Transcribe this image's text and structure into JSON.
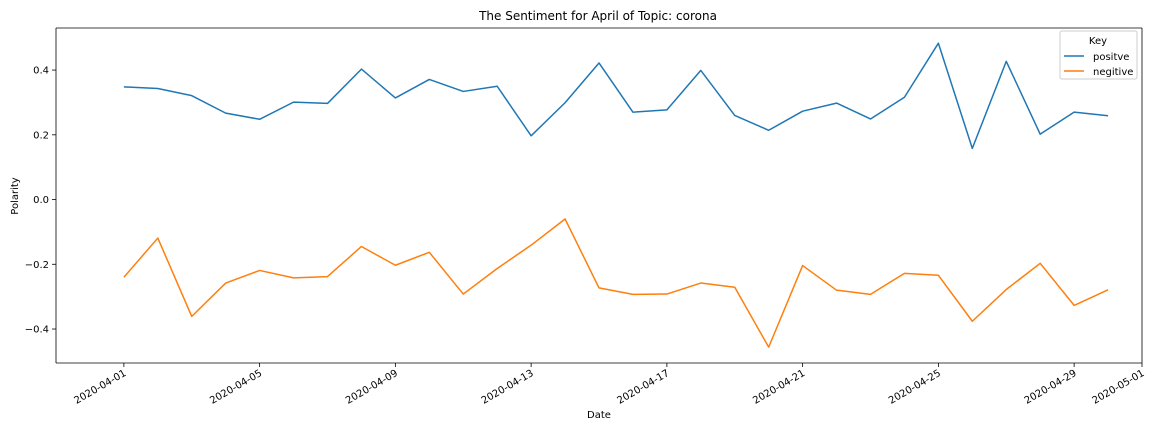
{
  "chart_data": {
    "type": "line",
    "title": "The Sentiment for April of Topic: corona",
    "xlabel": "Date",
    "ylabel": "Polarity",
    "x": [
      "2020-04-01",
      "2020-04-02",
      "2020-04-03",
      "2020-04-04",
      "2020-04-05",
      "2020-04-06",
      "2020-04-07",
      "2020-04-08",
      "2020-04-09",
      "2020-04-10",
      "2020-04-11",
      "2020-04-12",
      "2020-04-13",
      "2020-04-14",
      "2020-04-15",
      "2020-04-16",
      "2020-04-17",
      "2020-04-18",
      "2020-04-19",
      "2020-04-20",
      "2020-04-21",
      "2020-04-22",
      "2020-04-23",
      "2020-04-24",
      "2020-04-25",
      "2020-04-26",
      "2020-04-27",
      "2020-04-28",
      "2020-04-29",
      "2020-04-30"
    ],
    "series": [
      {
        "name": "positve",
        "color": "#1f77b4",
        "values": [
          0.348,
          0.343,
          0.321,
          0.267,
          0.248,
          0.301,
          0.297,
          0.403,
          0.314,
          0.371,
          0.334,
          0.35,
          0.197,
          0.299,
          0.422,
          0.27,
          0.277,
          0.399,
          0.26,
          0.214,
          0.273,
          0.298,
          0.249,
          0.316,
          0.483,
          0.158,
          0.427,
          0.202,
          0.27,
          0.259
        ]
      },
      {
        "name": "negitive",
        "color": "#ff7f0e",
        "values": [
          -0.24,
          -0.119,
          -0.361,
          -0.258,
          -0.219,
          -0.242,
          -0.238,
          -0.145,
          -0.203,
          -0.163,
          -0.292,
          -0.213,
          -0.141,
          -0.06,
          -0.273,
          -0.293,
          -0.292,
          -0.258,
          -0.271,
          -0.456,
          -0.204,
          -0.28,
          -0.293,
          -0.228,
          -0.234,
          -0.376,
          -0.278,
          -0.197,
          -0.327,
          -0.279
        ]
      }
    ],
    "x_ticks": [
      "2020-04-01",
      "2020-04-05",
      "2020-04-09",
      "2020-04-13",
      "2020-04-17",
      "2020-04-21",
      "2020-04-25",
      "2020-04-29",
      "2020-05-01"
    ],
    "y_ticks": [
      0.4,
      0.2,
      0.0,
      -0.2,
      -0.4
    ],
    "y_tick_labels": [
      "0.4",
      "0.2",
      "0.0",
      "−0.2",
      "−0.4"
    ],
    "ylim": [
      -0.505,
      0.53
    ],
    "xlim": [
      "2020-03-30",
      "2020-05-01"
    ],
    "legend": {
      "title": "Key",
      "placement": "top-right"
    },
    "grid": false
  }
}
